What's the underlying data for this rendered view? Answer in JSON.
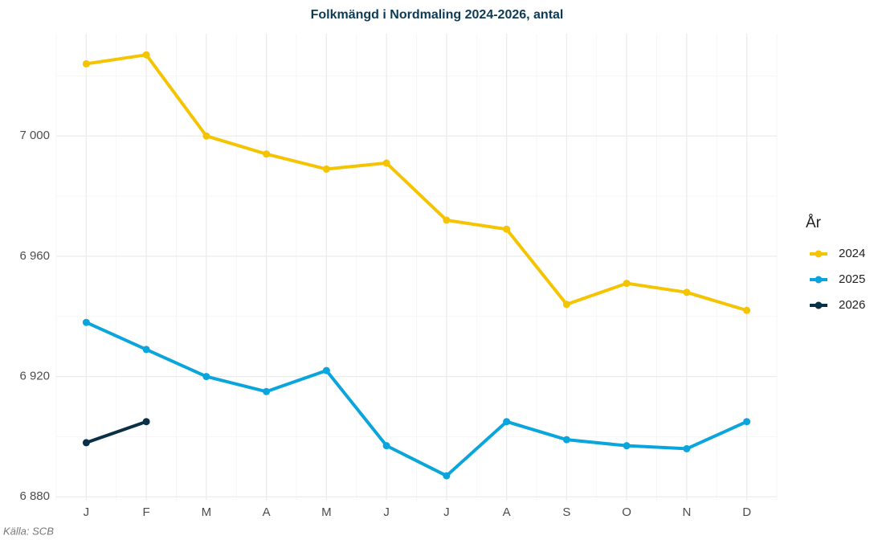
{
  "chart_data": {
    "type": "line",
    "title": "Folkmängd i Nordmaling 2024-2026, antal",
    "caption": "Källa: SCB",
    "legend_title": "År",
    "legend_position": "right",
    "grid": true,
    "categories": [
      "J",
      "F",
      "M",
      "A",
      "M",
      "J",
      "J",
      "A",
      "S",
      "O",
      "N",
      "D"
    ],
    "ylim": [
      6879,
      7034
    ],
    "yticks": [
      {
        "value": 6880,
        "label": "6 880"
      },
      {
        "value": 6920,
        "label": "6 920"
      },
      {
        "value": 6960,
        "label": "6 960"
      },
      {
        "value": 7000,
        "label": "7 000"
      }
    ],
    "series": [
      {
        "name": "2024",
        "color": "#f5c400",
        "values": [
          7024,
          7027,
          7000,
          6994,
          6989,
          6991,
          6972,
          6969,
          6944,
          6951,
          6948,
          6942
        ]
      },
      {
        "name": "2025",
        "color": "#0aa5dc",
        "values": [
          6938,
          6929,
          6920,
          6915,
          6922,
          6897,
          6887,
          6905,
          6899,
          6897,
          6896,
          6905
        ]
      },
      {
        "name": "2026",
        "color": "#0a3048",
        "values": [
          6898,
          6905,
          null,
          null,
          null,
          null,
          null,
          null,
          null,
          null,
          null,
          null
        ]
      }
    ]
  }
}
